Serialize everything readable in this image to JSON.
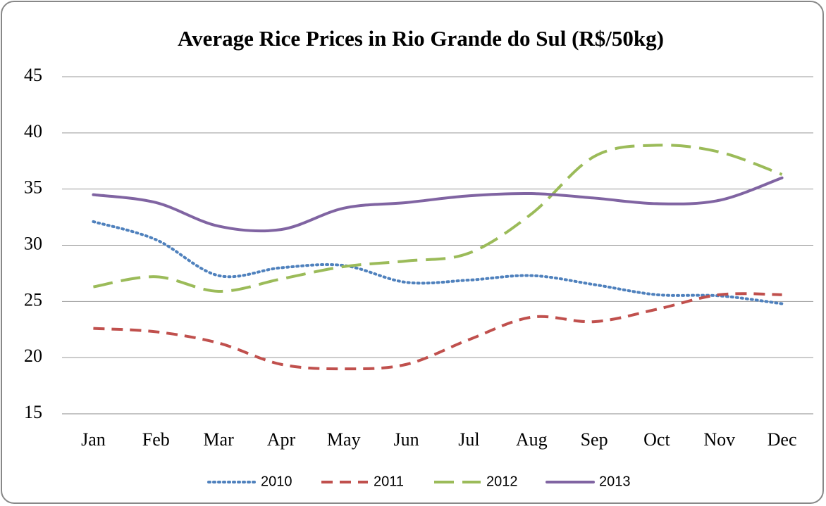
{
  "chart_data": {
    "type": "line",
    "title": "Average Rice Prices in Rio Grande do Sul (R$/50kg)",
    "categories": [
      "Jan",
      "Feb",
      "Mar",
      "Apr",
      "May",
      "Jun",
      "Jul",
      "Aug",
      "Sep",
      "Oct",
      "Nov",
      "Dec"
    ],
    "series": [
      {
        "name": "2010",
        "color": "#4f81bd",
        "line_style": "dotted",
        "values": [
          32.1,
          30.5,
          27.3,
          28.0,
          28.2,
          26.7,
          26.9,
          27.3,
          26.5,
          25.6,
          25.5,
          24.8
        ]
      },
      {
        "name": "2011",
        "color": "#c0504d",
        "line_style": "dashed",
        "values": [
          22.6,
          22.3,
          21.3,
          19.4,
          19.0,
          19.4,
          21.6,
          23.6,
          23.2,
          24.3,
          25.6,
          25.6
        ]
      },
      {
        "name": "2012",
        "color": "#9bbb59",
        "line_style": "long-dashed",
        "values": [
          26.3,
          27.2,
          25.9,
          27.0,
          28.1,
          28.6,
          29.3,
          32.8,
          37.9,
          38.9,
          38.3,
          36.3
        ]
      },
      {
        "name": "2013",
        "color": "#8064a2",
        "line_style": "solid",
        "values": [
          34.5,
          33.8,
          31.7,
          31.4,
          33.3,
          33.8,
          34.4,
          34.6,
          34.2,
          33.7,
          34.0,
          36.0
        ]
      }
    ],
    "ylim": [
      15,
      45
    ],
    "yticks": [
      15,
      20,
      25,
      30,
      35,
      40,
      45
    ],
    "grid": true,
    "smooth": true,
    "legend": "bottom"
  }
}
